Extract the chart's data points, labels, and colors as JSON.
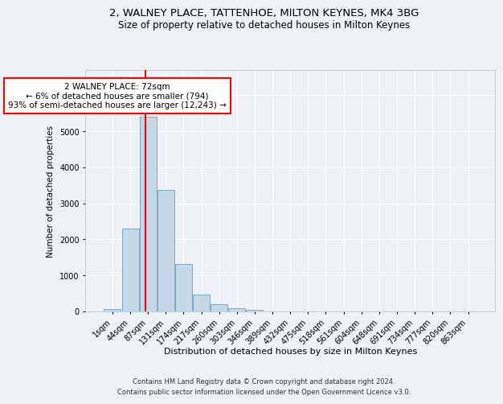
{
  "title": "2, WALNEY PLACE, TATTENHOE, MILTON KEYNES, MK4 3BG",
  "subtitle": "Size of property relative to detached houses in Milton Keynes",
  "xlabel": "Distribution of detached houses by size in Milton Keynes",
  "ylabel": "Number of detached properties",
  "footer_line1": "Contains HM Land Registry data © Crown copyright and database right 2024.",
  "footer_line2": "Contains public sector information licensed under the Open Government Licence v3.0.",
  "bar_labels": [
    "1sqm",
    "44sqm",
    "87sqm",
    "131sqm",
    "174sqm",
    "217sqm",
    "260sqm",
    "303sqm",
    "346sqm",
    "389sqm",
    "432sqm",
    "475sqm",
    "518sqm",
    "561sqm",
    "604sqm",
    "648sqm",
    "691sqm",
    "734sqm",
    "777sqm",
    "820sqm",
    "863sqm"
  ],
  "bar_values": [
    70,
    2300,
    5400,
    3380,
    1320,
    480,
    190,
    80,
    50,
    0,
    0,
    0,
    0,
    0,
    0,
    0,
    0,
    0,
    0,
    0,
    0
  ],
  "bar_color": "#c5d8e8",
  "bar_edge_color": "#7aaac8",
  "property_line_x": 1.85,
  "annotation_text": "2 WALNEY PLACE: 72sqm\n← 6% of detached houses are smaller (794)\n93% of semi-detached houses are larger (12,243) →",
  "annotation_box_color": "white",
  "annotation_box_edge_color": "red",
  "property_line_color": "red",
  "ylim": [
    0,
    6700
  ],
  "background_color": "#eef2f7",
  "grid_color": "white",
  "title_fontsize": 9.5,
  "subtitle_fontsize": 8.5
}
